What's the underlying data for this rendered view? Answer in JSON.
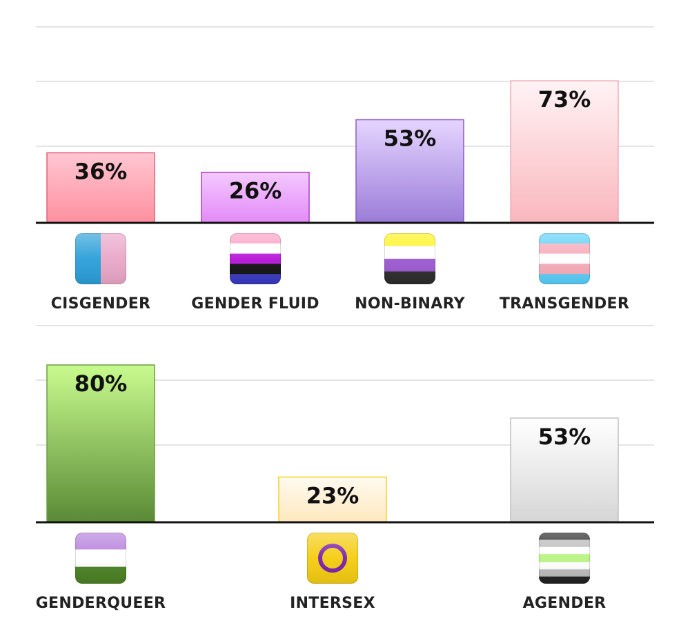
{
  "chart_data": [
    {
      "type": "bar",
      "categories": [
        "CISGENDER",
        "GENDER FLUID",
        "NON-BINARY",
        "TRANSGENDER"
      ],
      "values": [
        36,
        26,
        53,
        73
      ],
      "value_labels": [
        "36%",
        "26%",
        "53%",
        "73%"
      ],
      "icons": [
        "cisgender-flag-icon",
        "genderfluid-flag-icon",
        "nonbinary-flag-icon",
        "transgender-flag-icon"
      ],
      "colors": [
        {
          "top": "#ffc7d2",
          "bottom": "#ff8fa0",
          "stroke": "#e0607a"
        },
        {
          "top": "#f4c9ff",
          "bottom": "#e38af7",
          "stroke": "#b03ac8"
        },
        {
          "top": "#e6d5ff",
          "bottom": "#9a7cd8",
          "stroke": "#8a5cc8"
        },
        {
          "top": "#fff3f5",
          "bottom": "#f9b7bd",
          "stroke": "#f2aab8"
        }
      ],
      "ylim": [
        0,
        100
      ],
      "grid": true
    },
    {
      "type": "bar",
      "categories": [
        "GENDERQUEER",
        "INTERSEX",
        "AGENDER"
      ],
      "values": [
        80,
        23,
        53
      ],
      "value_labels": [
        "80%",
        "23%",
        "53%"
      ],
      "icons": [
        "genderqueer-flag-icon",
        "intersex-flag-icon",
        "agender-flag-icon"
      ],
      "colors": [
        {
          "top": "#c8fb8e",
          "bottom": "#5a8a35",
          "stroke": "#6d9d40"
        },
        {
          "top": "#fffaf0",
          "bottom": "#ffe8be",
          "stroke": "#f5d020"
        },
        {
          "top": "#ffffff",
          "bottom": "#d6d6d6",
          "stroke": "#c0c0c0"
        }
      ],
      "ylim": [
        0,
        100
      ],
      "grid": true
    }
  ]
}
